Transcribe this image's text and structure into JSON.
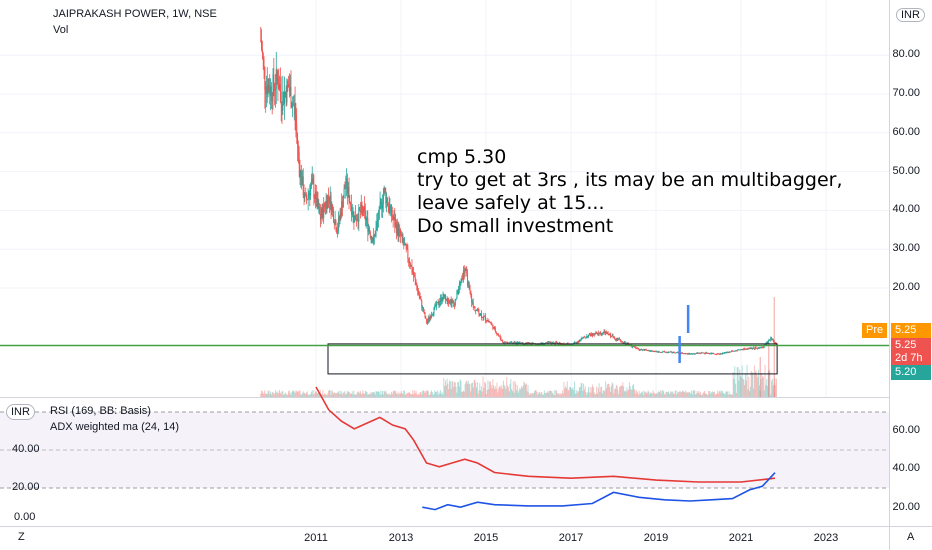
{
  "header": {
    "symbol": "JAIPRAKASH POWER, 1W, NSE",
    "volume_label": "Vol",
    "currency": "INR"
  },
  "annotation": {
    "lines": [
      "cmp 5.30",
      "try to get at 3rs , its may be an multibagger,",
      "leave safely at 15...",
      "Do small investment"
    ]
  },
  "price_badges": {
    "pre_label": "Pre",
    "pre_value": "5.25",
    "last_value": "5.25",
    "countdown": "2d 7h",
    "low_value": "5.20"
  },
  "indicators": {
    "rsi_label": "RSI (169, BB: Basis)",
    "adx_label": "ADX weighted ma (24, 14)"
  },
  "corner": {
    "left": "Z",
    "right": "A"
  },
  "colors": {
    "up": "#26a69a",
    "down": "#ef5350",
    "support": "#43a047",
    "rsi_line": "#e53935",
    "adx_line": "#1e53e5",
    "rsi_band": "#7e57c2",
    "pre_badge": "#ff9800"
  },
  "chart_data": {
    "type": "candlestick",
    "price_axis": {
      "ticks": [
        20,
        30,
        40,
        50,
        60,
        70,
        80
      ],
      "tick_labels": [
        "20.00",
        "30.00",
        "40.00",
        "50.00",
        "60.00",
        "70.00",
        "80.00"
      ]
    },
    "x_axis": {
      "tick_labels": [
        "2011",
        "2013",
        "2015",
        "2017",
        "2019",
        "2021",
        "2023"
      ]
    },
    "price_series": [
      {
        "x": 2009.7,
        "y": 84
      },
      {
        "x": 2009.8,
        "y": 73
      },
      {
        "x": 2009.95,
        "y": 71
      },
      {
        "x": 2010.1,
        "y": 74
      },
      {
        "x": 2010.2,
        "y": 69
      },
      {
        "x": 2010.35,
        "y": 72
      },
      {
        "x": 2010.5,
        "y": 66
      },
      {
        "x": 2010.6,
        "y": 52
      },
      {
        "x": 2010.75,
        "y": 42
      },
      {
        "x": 2010.9,
        "y": 47
      },
      {
        "x": 2011.1,
        "y": 38
      },
      {
        "x": 2011.3,
        "y": 44
      },
      {
        "x": 2011.5,
        "y": 35
      },
      {
        "x": 2011.7,
        "y": 47
      },
      {
        "x": 2011.9,
        "y": 38
      },
      {
        "x": 2012.1,
        "y": 40
      },
      {
        "x": 2012.35,
        "y": 32
      },
      {
        "x": 2012.6,
        "y": 45
      },
      {
        "x": 2012.8,
        "y": 38
      },
      {
        "x": 2013.0,
        "y": 33
      },
      {
        "x": 2013.2,
        "y": 27
      },
      {
        "x": 2013.4,
        "y": 19
      },
      {
        "x": 2013.6,
        "y": 11
      },
      {
        "x": 2013.8,
        "y": 15
      },
      {
        "x": 2014.0,
        "y": 18
      },
      {
        "x": 2014.25,
        "y": 16
      },
      {
        "x": 2014.5,
        "y": 25
      },
      {
        "x": 2014.7,
        "y": 15
      },
      {
        "x": 2014.9,
        "y": 13
      },
      {
        "x": 2015.1,
        "y": 11
      },
      {
        "x": 2015.4,
        "y": 6
      },
      {
        "x": 2015.8,
        "y": 5.8
      },
      {
        "x": 2016.2,
        "y": 5.5
      },
      {
        "x": 2016.6,
        "y": 5.9
      },
      {
        "x": 2017.0,
        "y": 5.3
      },
      {
        "x": 2017.4,
        "y": 7.8
      },
      {
        "x": 2017.8,
        "y": 8.5
      },
      {
        "x": 2018.2,
        "y": 6.2
      },
      {
        "x": 2018.6,
        "y": 4.2
      },
      {
        "x": 2019.0,
        "y": 3.6
      },
      {
        "x": 2019.4,
        "y": 3.4
      },
      {
        "x": 2019.8,
        "y": 3.0
      },
      {
        "x": 2020.1,
        "y": 3.3
      },
      {
        "x": 2020.5,
        "y": 3.0
      },
      {
        "x": 2020.9,
        "y": 4.0
      },
      {
        "x": 2021.2,
        "y": 4.4
      },
      {
        "x": 2021.5,
        "y": 4.6
      },
      {
        "x": 2021.7,
        "y": 7.0
      },
      {
        "x": 2021.85,
        "y": 5.25
      }
    ],
    "support_level": 5.25,
    "range_box": {
      "x": [
        2013.4,
        2021.85
      ],
      "y": [
        2.8,
        9.2
      ]
    },
    "rsi_axis": {
      "ticks": [
        20,
        40
      ],
      "tick_labels": [
        "20.00",
        "40.00"
      ]
    },
    "adx_axis": {
      "ticks": [
        0,
        20,
        40
      ],
      "tick_labels": [
        "0.00",
        "20.00",
        "40.00"
      ]
    },
    "rsi_series": [
      {
        "x": 2011.0,
        "y": 70
      },
      {
        "x": 2011.3,
        "y": 58
      },
      {
        "x": 2011.6,
        "y": 52
      },
      {
        "x": 2011.9,
        "y": 48
      },
      {
        "x": 2012.2,
        "y": 51
      },
      {
        "x": 2012.5,
        "y": 54
      },
      {
        "x": 2012.8,
        "y": 50
      },
      {
        "x": 2013.1,
        "y": 48
      },
      {
        "x": 2013.3,
        "y": 42
      },
      {
        "x": 2013.6,
        "y": 30
      },
      {
        "x": 2013.9,
        "y": 28
      },
      {
        "x": 2014.2,
        "y": 30
      },
      {
        "x": 2014.5,
        "y": 32
      },
      {
        "x": 2014.8,
        "y": 30
      },
      {
        "x": 2015.2,
        "y": 25
      },
      {
        "x": 2016.0,
        "y": 23
      },
      {
        "x": 2017.0,
        "y": 22
      },
      {
        "x": 2018.0,
        "y": 23
      },
      {
        "x": 2019.0,
        "y": 21
      },
      {
        "x": 2020.0,
        "y": 20
      },
      {
        "x": 2021.0,
        "y": 20
      },
      {
        "x": 2021.8,
        "y": 22
      }
    ],
    "adx_series": [
      {
        "x": 2013.5,
        "y": 8
      },
      {
        "x": 2013.8,
        "y": 6
      },
      {
        "x": 2014.1,
        "y": 10
      },
      {
        "x": 2014.4,
        "y": 8
      },
      {
        "x": 2014.8,
        "y": 12
      },
      {
        "x": 2015.2,
        "y": 10
      },
      {
        "x": 2016.0,
        "y": 9
      },
      {
        "x": 2016.8,
        "y": 9
      },
      {
        "x": 2017.5,
        "y": 11
      },
      {
        "x": 2018.0,
        "y": 20
      },
      {
        "x": 2018.6,
        "y": 16
      },
      {
        "x": 2019.2,
        "y": 14
      },
      {
        "x": 2019.8,
        "y": 13
      },
      {
        "x": 2020.3,
        "y": 14
      },
      {
        "x": 2020.8,
        "y": 15
      },
      {
        "x": 2021.2,
        "y": 22
      },
      {
        "x": 2021.5,
        "y": 25
      },
      {
        "x": 2021.8,
        "y": 36
      }
    ]
  }
}
